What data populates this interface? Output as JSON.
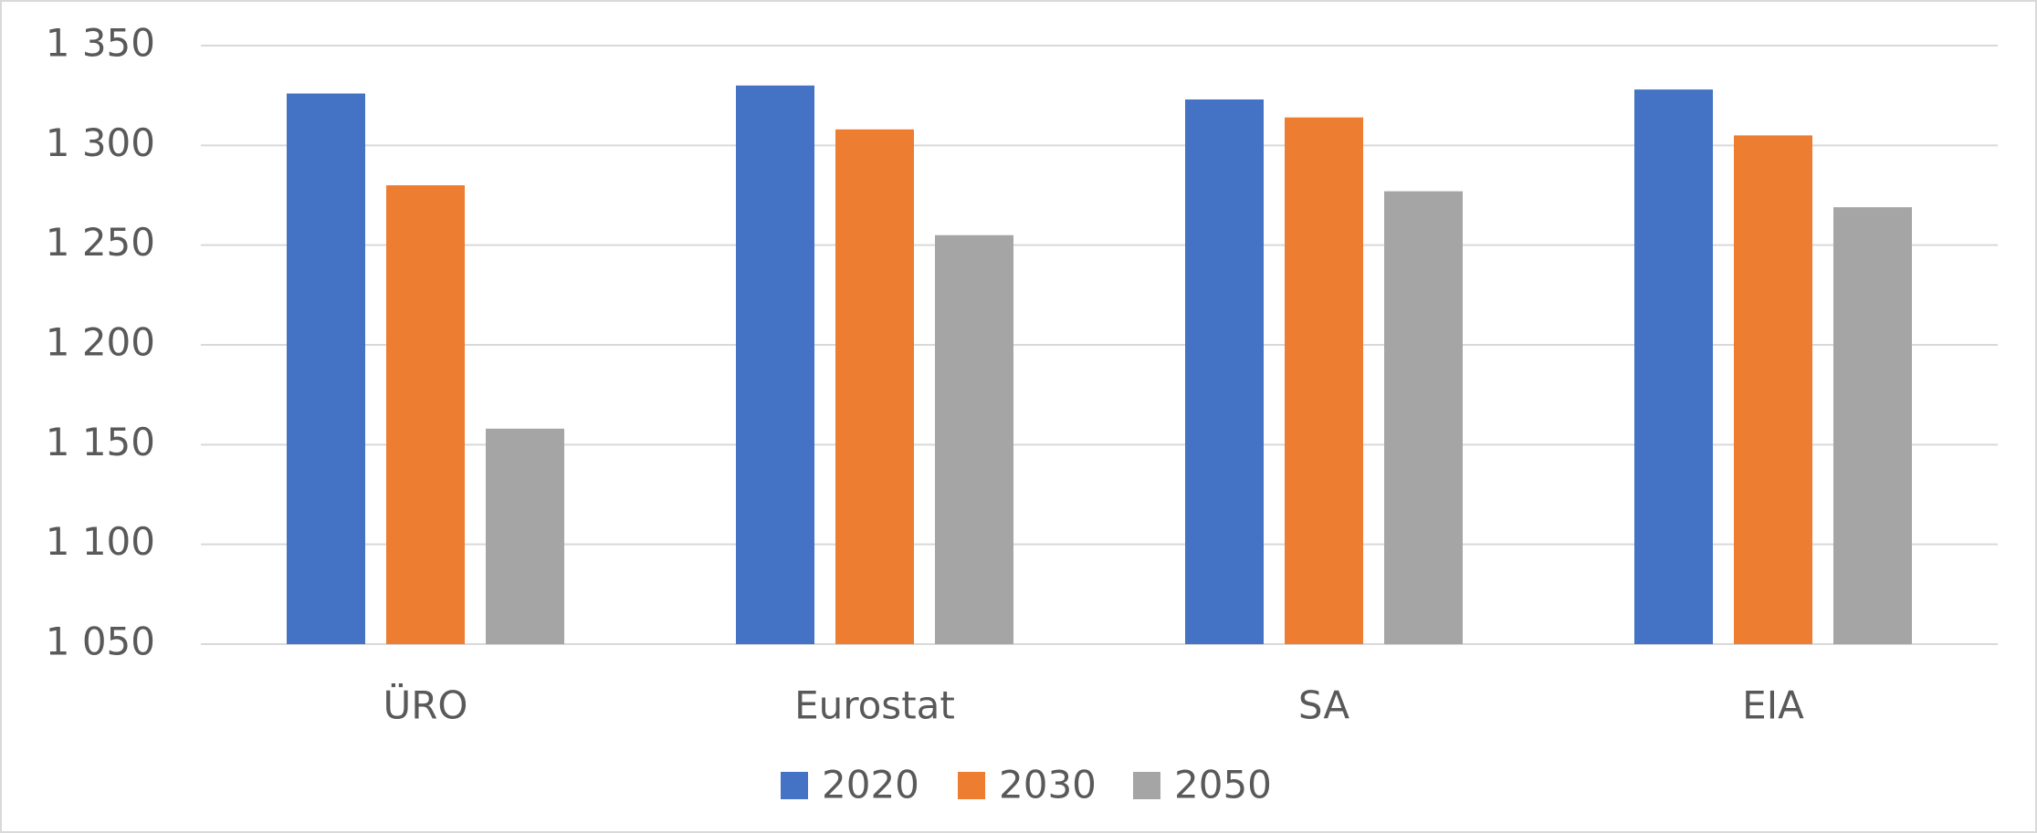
{
  "chart_data": {
    "type": "bar",
    "categories": [
      "ÜRO",
      "Eurostat",
      "SA",
      "EIA"
    ],
    "series": [
      {
        "name": "2020",
        "color": "#4472c4",
        "values": [
          1326,
          1330,
          1323,
          1328
        ]
      },
      {
        "name": "2030",
        "color": "#ed7d31",
        "values": [
          1280,
          1308,
          1314,
          1305
        ]
      },
      {
        "name": "2050",
        "color": "#a5a5a5",
        "values": [
          1158,
          1255,
          1277,
          1269
        ]
      }
    ],
    "ylim": [
      1050,
      1350
    ],
    "yticks": [
      {
        "value": 1050,
        "label": "1 050"
      },
      {
        "value": 1100,
        "label": "1 100"
      },
      {
        "value": 1150,
        "label": "1 150"
      },
      {
        "value": 1200,
        "label": "1 200"
      },
      {
        "value": 1250,
        "label": "1 250"
      },
      {
        "value": 1300,
        "label": "1 300"
      },
      {
        "value": 1350,
        "label": "1 350"
      }
    ],
    "grid": true,
    "legend": "bottom"
  }
}
